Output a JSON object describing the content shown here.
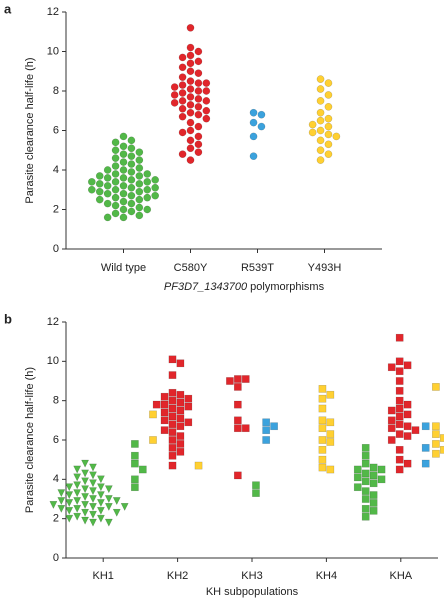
{
  "chart_data": [
    {
      "type": "swarm",
      "panel_label": "a",
      "ylabel": "Parasite clearance half-life (h)",
      "xlabel_italic": "PF3D7_1343700",
      "xlabel": " polymorphisms",
      "ylim": [
        0,
        12
      ],
      "yticks": [
        0,
        2,
        4,
        6,
        8,
        10,
        12
      ],
      "categories": [
        "Wild type",
        "C580Y",
        "R539T",
        "Y493H"
      ],
      "groups": [
        {
          "clusters": [
            {
              "color": "#52b848",
              "marker": "circle",
              "values": [
                5.7,
                5.5,
                5.4,
                5.2,
                5.1,
                5.0,
                4.9,
                4.8,
                4.7,
                4.6,
                4.5,
                4.4,
                4.3,
                4.2,
                4.1,
                4.0,
                4.0,
                3.9,
                3.8,
                3.8,
                3.7,
                3.7,
                3.6,
                3.6,
                3.5,
                3.5,
                3.4,
                3.4,
                3.3,
                3.3,
                3.2,
                3.2,
                3.1,
                3.1,
                3.0,
                3.0,
                2.9,
                2.9,
                2.8,
                2.8,
                2.7,
                2.7,
                2.6,
                2.6,
                2.5,
                2.5,
                2.4,
                2.3,
                2.3,
                2.2,
                2.1,
                2.0,
                2.0,
                1.9,
                1.8,
                1.7,
                1.6,
                1.6,
                3.0,
                3.4
              ]
            }
          ]
        },
        {
          "clusters": [
            {
              "color": "#e1262b",
              "marker": "circle",
              "values": [
                11.2,
                10.2,
                10.0,
                9.8,
                9.7,
                9.5,
                9.4,
                9.2,
                9.0,
                8.9,
                8.7,
                8.5,
                8.4,
                8.3,
                8.2,
                8.1,
                8.0,
                8.0,
                7.9,
                7.8,
                7.7,
                7.6,
                7.5,
                7.4,
                7.3,
                7.2,
                7.1,
                7.0,
                6.9,
                6.8,
                6.7,
                6.6,
                6.4,
                6.2,
                6.0,
                5.9,
                5.7,
                5.5,
                5.3,
                5.1,
                4.9,
                4.8,
                4.5,
                7.5,
                8.4
              ]
            }
          ]
        },
        {
          "clusters": [
            {
              "color": "#3ba2dd",
              "marker": "circle",
              "values": [
                6.9,
                6.8,
                6.4,
                6.2,
                5.7,
                4.7
              ]
            }
          ]
        },
        {
          "clusters": [
            {
              "color": "#ffd032",
              "marker": "circle",
              "values": [
                8.6,
                8.4,
                8.1,
                7.8,
                7.5,
                7.2,
                6.9,
                6.6,
                6.5,
                6.3,
                6.2,
                6.0,
                5.9,
                5.8,
                5.7,
                5.5,
                5.3,
                5.0,
                4.8,
                4.5
              ]
            }
          ]
        }
      ]
    },
    {
      "type": "swarm",
      "panel_label": "b",
      "ylabel": "Parasite clearance half-life (h)",
      "xlabel": "KH subpopulations",
      "ylim": [
        0,
        12
      ],
      "yticks": [
        0,
        2,
        4,
        6,
        8,
        10,
        12
      ],
      "categories": [
        "KH1",
        "KH2",
        "KH3",
        "KH4",
        "KHA"
      ],
      "groups": [
        {
          "clusters": [
            {
              "color": "#52b848",
              "marker": "triangle",
              "values": [
                4.8,
                4.6,
                4.5,
                4.3,
                4.2,
                4.1,
                4.0,
                3.9,
                3.8,
                3.7,
                3.6,
                3.5,
                3.5,
                3.4,
                3.3,
                3.3,
                3.2,
                3.1,
                3.0,
                3.0,
                2.9,
                2.9,
                2.8,
                2.8,
                2.7,
                2.7,
                2.6,
                2.6,
                2.5,
                2.5,
                2.4,
                2.4,
                2.3,
                2.3,
                2.2,
                2.1,
                2.0,
                2.0,
                1.9,
                1.8,
                1.8,
                3.6,
                3.2,
                2.9,
                2.6
              ]
            },
            {
              "color": "#52b848",
              "marker": "square",
              "values": [
                5.8,
                5.2,
                4.8,
                4.5,
                4.0,
                3.6
              ]
            },
            {
              "color": "#ffd032",
              "marker": "square",
              "values": [
                7.3,
                6.0
              ]
            }
          ]
        },
        {
          "clusters": [
            {
              "color": "#e1262b",
              "marker": "square",
              "values": [
                10.1,
                9.9,
                9.3,
                8.4,
                8.2,
                8.1,
                8.0,
                7.9,
                7.8,
                7.7,
                7.6,
                7.5,
                7.4,
                7.2,
                7.0,
                6.9,
                6.8,
                6.7,
                6.5,
                6.4,
                6.2,
                6.0,
                5.8,
                5.6,
                5.4,
                5.2,
                4.7,
                7.1,
                7.8,
                8.3
              ]
            },
            {
              "color": "#ffd032",
              "marker": "square",
              "values": [
                4.7
              ]
            }
          ]
        },
        {
          "clusters": [
            {
              "color": "#e1262b",
              "marker": "square",
              "values": [
                9.1,
                9.1,
                9.0,
                8.7,
                7.8,
                7.0,
                6.6,
                6.6,
                4.2
              ]
            },
            {
              "color": "#52b848",
              "marker": "square",
              "values": [
                3.7,
                3.3
              ]
            },
            {
              "color": "#3ba2dd",
              "marker": "square",
              "values": [
                6.9,
                6.7,
                6.5,
                6.0
              ]
            }
          ]
        },
        {
          "clusters": [
            {
              "color": "#ffd032",
              "marker": "square",
              "values": [
                8.6,
                8.3,
                8.1,
                7.6,
                7.0,
                6.9,
                6.6,
                6.3,
                6.0,
                5.9,
                5.5,
                5.0,
                4.6,
                4.5
              ]
            }
          ]
        },
        {
          "clusters": [
            {
              "color": "#52b848",
              "marker": "square",
              "values": [
                5.6,
                5.2,
                4.8,
                4.6,
                4.5,
                4.5,
                4.3,
                4.2,
                4.1,
                4.0,
                3.9,
                3.8,
                3.6,
                3.4,
                3.2,
                3.0,
                2.8,
                2.5,
                2.4,
                2.1
              ]
            },
            {
              "color": "#e1262b",
              "marker": "square",
              "values": [
                11.2,
                10.0,
                9.8,
                9.7,
                9.5,
                9.0,
                8.5,
                8.0,
                7.8,
                7.5,
                7.3,
                7.2,
                7.0,
                6.8,
                6.7,
                6.6,
                6.5,
                6.3,
                6.2,
                6.0,
                5.5,
                5.0,
                4.8,
                4.5,
                7.6
              ]
            },
            {
              "color": "#3ba2dd",
              "marker": "square",
              "values": [
                6.7,
                5.6,
                4.8
              ]
            },
            {
              "color": "#ffd032",
              "marker": "square",
              "values": [
                8.7,
                6.7,
                6.3,
                6.1,
                5.8,
                5.5,
                5.3
              ]
            }
          ]
        }
      ]
    }
  ]
}
